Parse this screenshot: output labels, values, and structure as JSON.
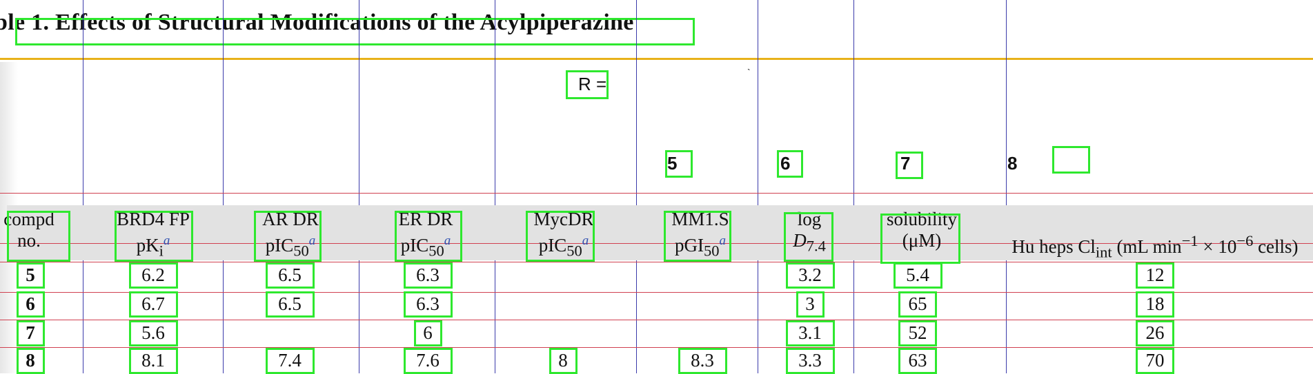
{
  "title": "ble 1. Effects of Structural Modifications of the Acylpiperazine",
  "structure": {
    "r_label": "R =",
    "compound_labels": [
      "5",
      "6",
      "7",
      "8"
    ]
  },
  "headers": {
    "compd": [
      "compd",
      "no."
    ],
    "brd4": [
      "BRD4 FP",
      "pK",
      "i"
    ],
    "ar": [
      "AR DR",
      "pIC",
      "50"
    ],
    "er": [
      "ER DR",
      "pIC",
      "50"
    ],
    "myc": [
      "MycDR",
      "pIC",
      "50"
    ],
    "mm1s": [
      "MM1.S",
      "pGI",
      "50"
    ],
    "logd": [
      "log",
      "D",
      "7.4"
    ],
    "sol": [
      "solubility",
      "(μM)"
    ],
    "hu": [
      "Hu heps Cl",
      "int",
      " (mL min",
      "−1",
      " × 10",
      "−6",
      " cells)"
    ],
    "footnote": "a"
  },
  "rows": [
    {
      "compd": "5",
      "brd4": "6.2",
      "ar": "6.5",
      "er": "6.3",
      "myc": "",
      "mm1s": "",
      "logd": "3.2",
      "sol": "5.4",
      "hu": "12"
    },
    {
      "compd": "6",
      "brd4": "6.7",
      "ar": "6.5",
      "er": "6.3",
      "myc": "",
      "mm1s": "",
      "logd": "3",
      "sol": "65",
      "hu": "18"
    },
    {
      "compd": "7",
      "brd4": "5.6",
      "ar": "",
      "er": "6",
      "myc": "",
      "mm1s": "",
      "logd": "3.1",
      "sol": "52",
      "hu": "26"
    },
    {
      "compd": "8",
      "brd4": "8.1",
      "ar": "7.4",
      "er": "7.6",
      "myc": "8",
      "mm1s": "8.3",
      "logd": "3.3",
      "sol": "63",
      "hu": "70"
    }
  ]
}
